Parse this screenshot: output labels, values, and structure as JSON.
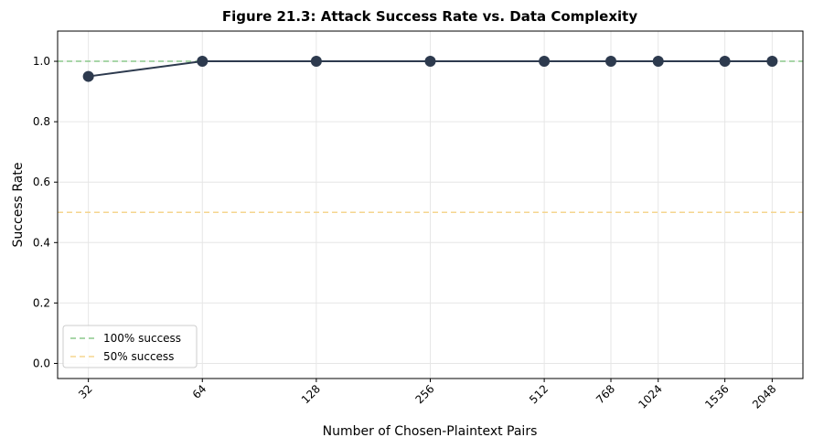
{
  "chart_data": {
    "type": "line",
    "title": "Figure 21.3: Attack Success Rate vs. Data Complexity",
    "xlabel": "Number of Chosen-Plaintext Pairs",
    "ylabel": "Success Rate",
    "x_scale": "log2",
    "x_ticks": [
      "32",
      "64",
      "128",
      "256",
      "512",
      "768",
      "1024",
      "1536",
      "2048"
    ],
    "ylim": [
      -0.05,
      1.1
    ],
    "y_ticks": [
      "0.0",
      "0.2",
      "0.4",
      "0.6",
      "0.8",
      "1.0"
    ],
    "grid": true,
    "legend_position": "lower-left",
    "series": [
      {
        "x": [
          32,
          64,
          128,
          256,
          512,
          768,
          1024,
          1536,
          2048
        ],
        "y": [
          0.95,
          1.0,
          1.0,
          1.0,
          1.0,
          1.0,
          1.0,
          1.0,
          1.0
        ],
        "color": "#2d3a4e",
        "marker": "circle"
      }
    ],
    "reference_lines": [
      {
        "name": "100% success",
        "y": 1.0,
        "color": "#8cc98c",
        "style": "dashed"
      },
      {
        "name": "50% success",
        "y": 0.5,
        "color": "#f5d58f",
        "style": "dashed"
      }
    ]
  }
}
